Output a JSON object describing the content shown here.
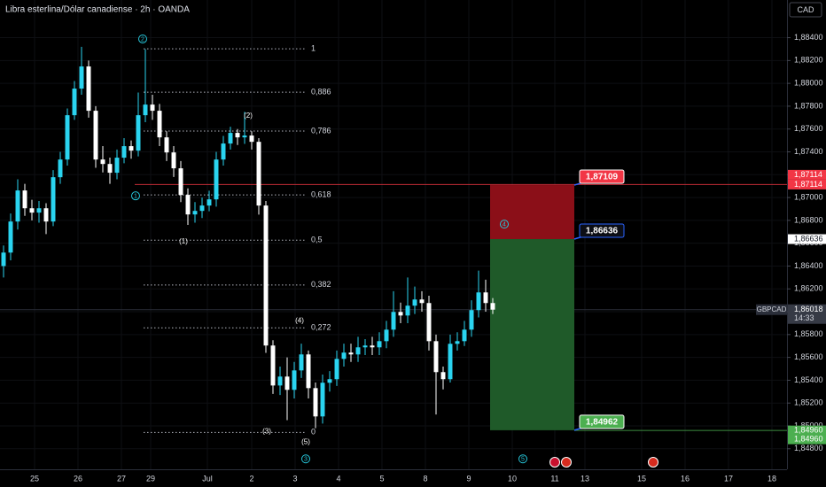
{
  "header": {
    "title": "Libra esterlina/Dólar canadiense · 2h · OANDA"
  },
  "chart_data": {
    "type": "candlestick",
    "currency": "CAD",
    "symbol": "GBPCAD",
    "countdown": "14:33",
    "up_color": "#2ad4f0",
    "down_color": "#ffffff",
    "open": [
      1.864,
      1.86518,
      1.8679,
      1.87062,
      1.86906,
      1.86868,
      1.86906,
      1.8679,
      1.87178,
      1.87333,
      1.87721,
      1.87954,
      1.88148,
      1.8776,
      1.87333,
      1.87294,
      1.87217,
      1.87349,
      1.8745,
      1.87411,
      1.87721,
      1.87814,
      1.8776,
      1.87527,
      1.87395,
      1.87256,
      1.87023,
      1.86852,
      1.86883,
      1.8693,
      1.86984,
      1.87333,
      1.87473,
      1.87566,
      1.87527,
      1.87543,
      1.87488,
      1.8693,
      1.85704,
      1.85354,
      1.85432,
      1.85316,
      1.85486,
      1.85626,
      1.85331,
      1.85083,
      1.85378,
      1.85409,
      1.85587,
      1.85642,
      1.85626,
      1.85688,
      1.85704,
      1.85688,
      1.85742,
      1.85843,
      1.85998,
      1.85967,
      1.86053,
      1.86107,
      1.86076,
      1.85742,
      1.85471,
      1.85409,
      1.85719,
      1.85742,
      1.85843,
      1.86014,
      1.86169,
      1.86076
    ],
    "high": [
      1.8658,
      1.8686,
      1.8716,
      1.8712,
      1.8698,
      1.8697,
      1.8695,
      1.8724,
      1.874,
      1.8778,
      1.8802,
      1.8832,
      1.882,
      1.878,
      1.8745,
      1.8735,
      1.8742,
      1.8752,
      1.875,
      1.8792,
      1.883,
      1.879,
      1.8782,
      1.8758,
      1.8745,
      1.8732,
      1.8708,
      1.8696,
      1.87,
      1.8706,
      1.874,
      1.8754,
      1.8762,
      1.876,
      1.8775,
      1.8758,
      1.8752,
      1.8697,
      1.8575,
      1.8552,
      1.856,
      1.8556,
      1.8572,
      1.8566,
      1.8538,
      1.8545,
      1.8548,
      1.8566,
      1.8572,
      1.8572,
      1.8578,
      1.8576,
      1.8578,
      1.8582,
      1.8592,
      1.8618,
      1.8608,
      1.863,
      1.8622,
      1.8618,
      1.8614,
      1.858,
      1.8552,
      1.858,
      1.8582,
      1.8592,
      1.861,
      1.8636,
      1.8628,
      1.8612
    ],
    "low": [
      1.863,
      1.8645,
      1.8672,
      1.8684,
      1.868,
      1.8678,
      1.8668,
      1.8675,
      1.8712,
      1.8728,
      1.8768,
      1.879,
      1.877,
      1.8726,
      1.8722,
      1.8712,
      1.8716,
      1.873,
      1.8734,
      1.8736,
      1.8766,
      1.8768,
      1.8745,
      1.8732,
      1.8718,
      1.8696,
      1.8676,
      1.8678,
      1.8682,
      1.8688,
      1.8692,
      1.8728,
      1.8742,
      1.8746,
      1.8747,
      1.8742,
      1.8685,
      1.8564,
      1.8528,
      1.8527,
      1.8505,
      1.8524,
      1.8542,
      1.8524,
      1.8498,
      1.8502,
      1.853,
      1.8535,
      1.8552,
      1.8556,
      1.8556,
      1.8562,
      1.8562,
      1.8562,
      1.8568,
      1.8578,
      1.859,
      1.859,
      1.8598,
      1.86,
      1.8566,
      1.851,
      1.8532,
      1.8538,
      1.8566,
      1.857,
      1.8578,
      1.8595,
      1.86,
      1.8598
    ],
    "close": [
      1.86518,
      1.8679,
      1.87062,
      1.86906,
      1.86868,
      1.86906,
      1.8679,
      1.87178,
      1.87333,
      1.87721,
      1.87954,
      1.88148,
      1.8776,
      1.87333,
      1.87294,
      1.87217,
      1.87349,
      1.8745,
      1.87411,
      1.87721,
      1.87814,
      1.8776,
      1.87527,
      1.87395,
      1.87256,
      1.87023,
      1.86852,
      1.86883,
      1.8693,
      1.86984,
      1.87333,
      1.87473,
      1.87566,
      1.87527,
      1.87543,
      1.87488,
      1.8693,
      1.85704,
      1.85354,
      1.85432,
      1.85316,
      1.85486,
      1.85626,
      1.85331,
      1.85083,
      1.85378,
      1.85409,
      1.85587,
      1.85642,
      1.85626,
      1.85688,
      1.85704,
      1.85688,
      1.85742,
      1.85843,
      1.85998,
      1.85967,
      1.86053,
      1.86107,
      1.86076,
      1.85742,
      1.85471,
      1.85409,
      1.85719,
      1.85742,
      1.85843,
      1.86014,
      1.86169,
      1.86076,
      1.86018
    ],
    "xlim": [
      -0.5,
      110.5
    ],
    "xticks": [
      {
        "value": 4.375,
        "label": "25"
      },
      {
        "value": 10.5,
        "label": "26"
      },
      {
        "value": 16.625,
        "label": "27"
      },
      {
        "value": 20.75,
        "label": "29"
      },
      {
        "value": 28.75,
        "label": "Jul"
      },
      {
        "value": 35,
        "label": "2"
      },
      {
        "value": 41.125,
        "label": "3"
      },
      {
        "value": 47.25,
        "label": "4"
      },
      {
        "value": 53.375,
        "label": "5"
      },
      {
        "value": 59.5,
        "label": "8"
      },
      {
        "value": 65.625,
        "label": "9"
      },
      {
        "value": 71.75,
        "label": "10"
      },
      {
        "value": 77.75,
        "label": "11"
      },
      {
        "value": 82,
        "label": "13"
      },
      {
        "value": 90,
        "label": "15"
      },
      {
        "value": 96.125,
        "label": "16"
      },
      {
        "value": 102.25,
        "label": "17"
      },
      {
        "value": 108.375,
        "label": "18"
      }
    ],
    "ylim": [
      1.8462,
      1.8873
    ],
    "yticks": [
      {
        "value": 1.884,
        "label": "1,88400"
      },
      {
        "value": 1.882,
        "label": "1,88200"
      },
      {
        "value": 1.88,
        "label": "1,88000"
      },
      {
        "value": 1.878,
        "label": "1,87800"
      },
      {
        "value": 1.876,
        "label": "1,87600"
      },
      {
        "value": 1.874,
        "label": "1,87400"
      },
      {
        "value": 1.872,
        "label": "1,87200"
      },
      {
        "value": 1.87,
        "label": "1,87000"
      },
      {
        "value": 1.868,
        "label": "1,86800"
      },
      {
        "value": 1.866,
        "label": "1,86600"
      },
      {
        "value": 1.864,
        "label": "1,86400"
      },
      {
        "value": 1.862,
        "label": "1,86200"
      },
      {
        "value": 1.86,
        "label": "1,86000"
      },
      {
        "value": 1.858,
        "label": "1,85800"
      },
      {
        "value": 1.856,
        "label": "1,85600"
      },
      {
        "value": 1.854,
        "label": "1,85400"
      },
      {
        "value": 1.852,
        "label": "1,85200"
      },
      {
        "value": 1.85,
        "label": "1,85000"
      },
      {
        "value": 1.848,
        "label": "1,84800"
      }
    ],
    "last_price": {
      "value": 1.86018,
      "label": "1,86018"
    },
    "fib": {
      "x_range": [
        19.75,
        42.625
      ],
      "levels": [
        {
          "ratio_label": "1",
          "price": 1.88303
        },
        {
          "ratio_label": "0,886",
          "price": 1.87923
        },
        {
          "ratio_label": "0,786",
          "price": 1.87582
        },
        {
          "ratio_label": "0,618",
          "price": 1.87023
        },
        {
          "ratio_label": "0,5",
          "price": 1.86627
        },
        {
          "ratio_label": "0,382",
          "price": 1.86234
        },
        {
          "ratio_label": "0,272",
          "price": 1.85859
        },
        {
          "ratio_label": "0",
          "price": 1.84943
        }
      ]
    },
    "position": {
      "x_range": [
        68.625,
        80.5
      ],
      "stop": {
        "value": 1.87109,
        "label": "1,87109"
      },
      "entry": {
        "value": 1.86636,
        "label": "1,86636"
      },
      "target": {
        "value": 1.84962,
        "label": "1,84962"
      }
    },
    "price_badges": [
      {
        "value": 1.87114,
        "label": "1,87114",
        "color": "#f23645",
        "ray_start": 18.5
      },
      {
        "value": 1.87114,
        "label": "1,87114",
        "color": "#f23645"
      },
      {
        "value": 1.86636,
        "label": "1,86636",
        "color": "#ffffff"
      },
      {
        "value": 1.8496,
        "label": "1,84960",
        "color": "#4caf50",
        "ray_start": 80.5
      },
      {
        "value": 1.8496,
        "label": "1,84960",
        "color": "#4caf50"
      }
    ],
    "waves": [
      {
        "label": "2",
        "x": 19.625,
        "price": 1.88389,
        "style": "circle"
      },
      {
        "label": "1",
        "x": 18.625,
        "price": 1.87015,
        "style": "circle"
      },
      {
        "label": "3",
        "x": 42.625,
        "price": 1.84711,
        "style": "circle"
      },
      {
        "label": "4",
        "x": 70.625,
        "price": 1.86767,
        "style": "circle"
      },
      {
        "label": "5",
        "x": 73.25,
        "price": 1.84711,
        "style": "circle"
      },
      {
        "label": "(2)",
        "x": 34.5,
        "price": 1.87714,
        "style": "plain"
      },
      {
        "label": "(1)",
        "x": 25.375,
        "price": 1.86612,
        "style": "plain"
      },
      {
        "label": "(4)",
        "x": 41.75,
        "price": 1.85921,
        "style": "plain"
      },
      {
        "label": "(3)",
        "x": 37.125,
        "price": 1.84952,
        "style": "plain"
      },
      {
        "label": "(5)",
        "x": 42.625,
        "price": 1.84859,
        "style": "plain"
      }
    ]
  }
}
